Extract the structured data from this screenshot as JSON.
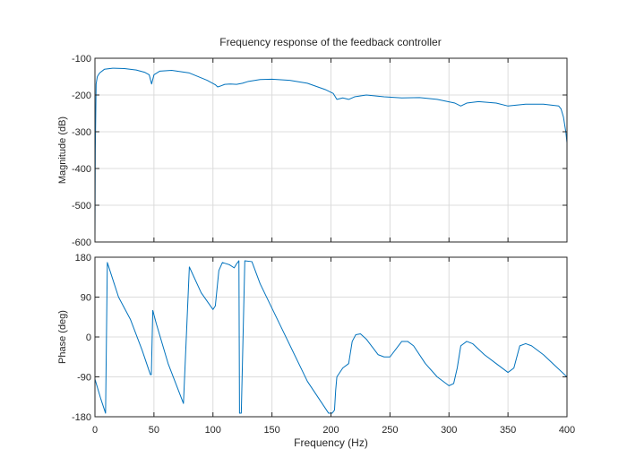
{
  "figure": {
    "title": "Frequency response of the feedback controller",
    "colors": {
      "line": "#0072bd",
      "grid": "#dcdcdc",
      "axes": "#262626",
      "background": "#ffffff"
    }
  },
  "chart_data": [
    {
      "type": "line",
      "title": "Frequency response of the feedback controller",
      "xlabel": "",
      "ylabel": "Magnitude (dB)",
      "xlim": [
        0,
        400
      ],
      "ylim": [
        -600,
        -100
      ],
      "xticks": [
        0,
        50,
        100,
        150,
        200,
        250,
        300,
        350,
        400
      ],
      "xticklabels": [
        "",
        "",
        "",
        "",
        "",
        "",
        "",
        "",
        ""
      ],
      "yticks": [
        -600,
        -500,
        -400,
        -300,
        -200,
        -100
      ],
      "yticklabels": [
        "-600",
        "-500",
        "-400",
        "-300",
        "-200",
        "-100"
      ],
      "grid": true,
      "series": [
        {
          "x": [
            0,
            0.3,
            1,
            2,
            4,
            8,
            15,
            25,
            35,
            42,
            46,
            48,
            50,
            55,
            65,
            80,
            95,
            102,
            104,
            106,
            110,
            115,
            120,
            125,
            130,
            140,
            150,
            165,
            180,
            195,
            202,
            205,
            210,
            215,
            220,
            230,
            245,
            260,
            275,
            290,
            305,
            310,
            315,
            325,
            340,
            350,
            365,
            380,
            393,
            395,
            397,
            399,
            400
          ],
          "y": [
            -590,
            -350,
            -170,
            -150,
            -140,
            -130,
            -127,
            -128,
            -132,
            -138,
            -145,
            -170,
            -145,
            -135,
            -133,
            -140,
            -160,
            -172,
            -178,
            -176,
            -171,
            -170,
            -171,
            -168,
            -163,
            -158,
            -157,
            -160,
            -168,
            -185,
            -196,
            -212,
            -208,
            -212,
            -205,
            -200,
            -205,
            -208,
            -207,
            -212,
            -222,
            -230,
            -222,
            -218,
            -222,
            -230,
            -225,
            -225,
            -230,
            -238,
            -260,
            -300,
            -330
          ]
        }
      ]
    },
    {
      "type": "line",
      "title": "",
      "xlabel": "Frequency  (Hz)",
      "ylabel": "Phase (deg)",
      "xlim": [
        0,
        400
      ],
      "ylim": [
        -180,
        180
      ],
      "xticks": [
        0,
        50,
        100,
        150,
        200,
        250,
        300,
        350,
        400
      ],
      "xticklabels": [
        "0",
        "50",
        "100",
        "150",
        "200",
        "250",
        "300",
        "350",
        "400"
      ],
      "yticks": [
        -180,
        -90,
        0,
        90,
        180
      ],
      "yticklabels": [
        "-180",
        "-90",
        "0",
        "90",
        "180"
      ],
      "grid": true,
      "series": [
        {
          "x": [
            0,
            5,
            9,
            10.5,
            20,
            30,
            40,
            47,
            47.8,
            49,
            52,
            62,
            75,
            80,
            90,
            100,
            102,
            105,
            108,
            114,
            118,
            120,
            122,
            122.5,
            124,
            127,
            133,
            140,
            160,
            180,
            198,
            201,
            203,
            204,
            205,
            210,
            215,
            218,
            221,
            225,
            230,
            240,
            245,
            250,
            260,
            265,
            270,
            280,
            290,
            300,
            304,
            307,
            310,
            315,
            320,
            330,
            340,
            350,
            355,
            360,
            365,
            370,
            380,
            390,
            400
          ],
          "y": [
            -95,
            -140,
            -172,
            168,
            90,
            40,
            -30,
            -85,
            -85,
            60,
            30,
            -60,
            -150,
            158,
            100,
            62,
            70,
            150,
            168,
            163,
            156,
            165,
            172,
            -172,
            -172,
            172,
            170,
            120,
            10,
            -100,
            -172,
            -172,
            -165,
            -120,
            -90,
            -70,
            -60,
            -10,
            5,
            7,
            -5,
            -40,
            -45,
            -45,
            -10,
            -10,
            -20,
            -60,
            -90,
            -110,
            -105,
            -70,
            -20,
            -10,
            -15,
            -40,
            -60,
            -80,
            -70,
            -20,
            -15,
            -20,
            -40,
            -65,
            -90
          ]
        }
      ]
    }
  ]
}
